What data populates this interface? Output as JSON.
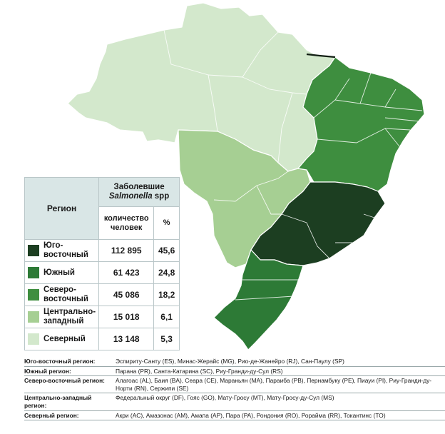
{
  "colors": {
    "southeast": "#1c3e21",
    "south": "#2d7a36",
    "northeast": "#3e8e3f",
    "centerwest": "#a6cf93",
    "north": "#d3e8cc",
    "coast": "#121f14"
  },
  "table": {
    "header_region": "Регион",
    "header_group_line1": "Заболевшие",
    "header_group_italic": "Salmonella",
    "header_group_suffix": " spp",
    "header_count": "количество человек",
    "header_percent": "%",
    "rows": [
      {
        "name": "Юго-восточный",
        "count": "112 895",
        "percent": "45,6",
        "color": "#1c3e21"
      },
      {
        "name": "Южный",
        "count": "61 423",
        "percent": "24,8",
        "color": "#2d7a36"
      },
      {
        "name": "Северо-восточный",
        "count": "45 086",
        "percent": "18,2",
        "color": "#3e8e3f"
      },
      {
        "name": "Центрально-западный",
        "count": "15 018",
        "percent": "6,1",
        "color": "#a6cf93"
      },
      {
        "name": "Северный",
        "count": "13 148",
        "percent": "5,3",
        "color": "#d3e8cc"
      }
    ]
  },
  "notes": [
    {
      "label": "Юго-восточный регион:",
      "text": "Эспириту-Санту (ES), Минас-Жерайс (MG), Рио-де-Жанейро (RJ), Сан-Паулу (SP)"
    },
    {
      "label": "Южный регион:",
      "text": "Парана (PR), Санта-Катарина (SC), Риу-Гранди-ду-Сул (RS)"
    },
    {
      "label": "Северо-восточный регион:",
      "text": "Алагоас (AL), Баия (BA), Сеара (CE), Мараньян (MA), Параиба (PB), Пернамбуку (PE), Пиауи (PI), Риу-Гранди-ду-Норти (RN), Сержипи (SE)"
    },
    {
      "label": "Центрально-западный регион:",
      "text": "Федеральный округ (DF), Гояс (GO), Мату-Гросу (MT), Мату-Гросу-ду-Сул (MS)"
    },
    {
      "label": "Северный регион:",
      "text": "Акри (AC), Амазонас (AM), Амапа (AP), Пара (PA), Рондония (RO), Рорайма (RR), Токантинс (TO)"
    }
  ]
}
